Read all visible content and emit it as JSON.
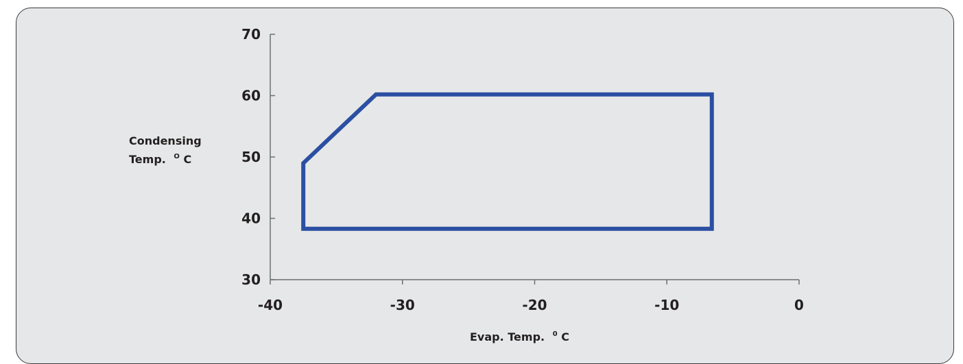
{
  "header": {
    "title": ""
  },
  "chart_data": {
    "type": "line",
    "title": "",
    "xlabel": "Evap. Temp.",
    "xlabel_unit": "C",
    "xlabel_unit_prefix": "0",
    "ylabel_line1": "Condensing",
    "ylabel_line2": "Temp.",
    "ylabel_unit_prefix": "O",
    "ylabel_unit": "C",
    "xlim": [
      -40,
      0
    ],
    "ylim": [
      30,
      70
    ],
    "xticks": [
      -40,
      -30,
      -20,
      -10,
      0
    ],
    "yticks": [
      30,
      40,
      50,
      60,
      70
    ],
    "grid": false,
    "series": [
      {
        "color": "#2b4fa2",
        "closed": true,
        "x": [
          -37.5,
          -37.5,
          -32,
          -6.6,
          -6.6,
          -37.5
        ],
        "y": [
          38.3,
          49,
          60.2,
          60.2,
          38.3,
          38.3
        ]
      }
    ]
  }
}
